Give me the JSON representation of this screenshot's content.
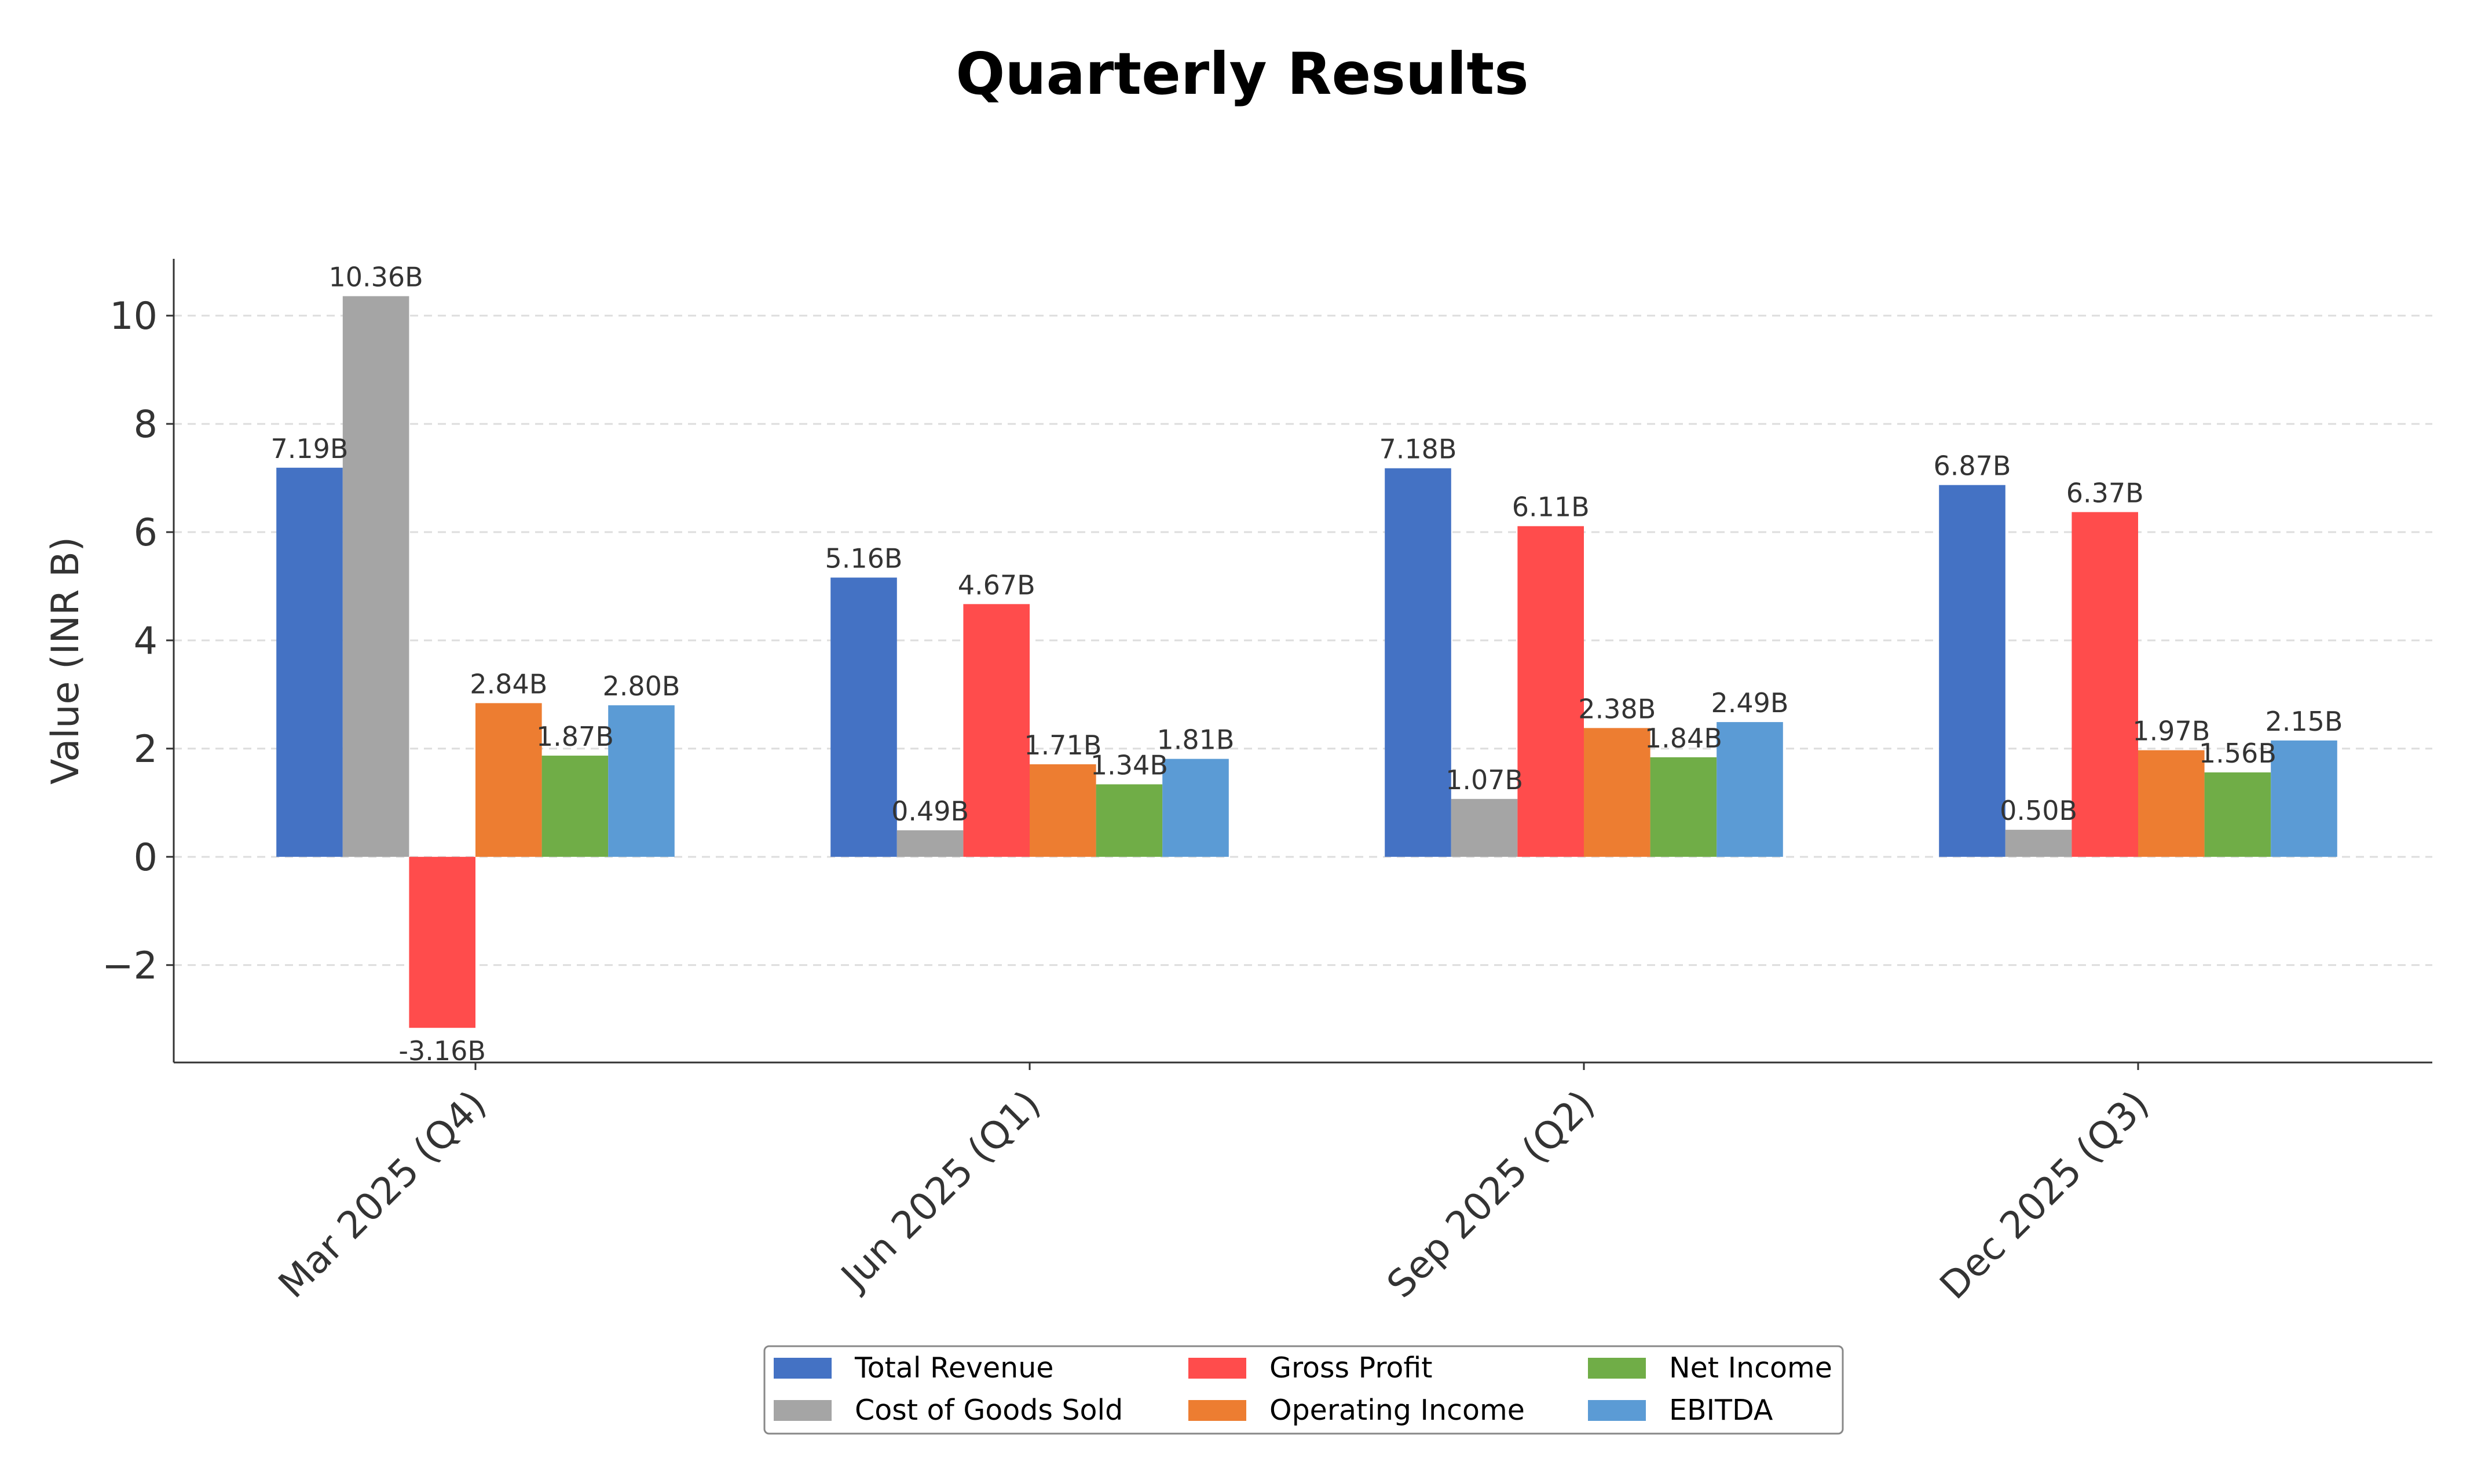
{
  "chart_data": {
    "type": "bar",
    "title": "Quarterly Results",
    "xlabel": "",
    "ylabel": "Value (INR B)",
    "categories": [
      "Mar 2025 (Q4)",
      "Jun 2025 (Q1)",
      "Sep 2025 (Q2)",
      "Dec 2025 (Q3)"
    ],
    "series": [
      {
        "name": "Total Revenue",
        "color": "#4472C4",
        "values": [
          7.19,
          5.16,
          7.18,
          6.87
        ],
        "labels": [
          "7.19B",
          "5.16B",
          "7.18B",
          "6.87B"
        ]
      },
      {
        "name": "Cost of Goods Sold",
        "color": "#A5A5A5",
        "values": [
          10.36,
          0.49,
          1.07,
          0.5
        ],
        "labels": [
          "10.36B",
          "0.49B",
          "1.07B",
          "0.50B"
        ]
      },
      {
        "name": "Gross Profit",
        "color": "#FF4C4C",
        "values": [
          -3.16,
          4.67,
          6.11,
          6.37
        ],
        "labels": [
          "-3.16B",
          "4.67B",
          "6.11B",
          "6.37B"
        ]
      },
      {
        "name": "Operating Income",
        "color": "#ED7D31",
        "values": [
          2.84,
          1.71,
          2.38,
          1.97
        ],
        "labels": [
          "2.84B",
          "1.71B",
          "2.38B",
          "1.97B"
        ]
      },
      {
        "name": "Net Income",
        "color": "#70AD47",
        "values": [
          1.87,
          1.34,
          1.84,
          1.56
        ],
        "labels": [
          "1.87B",
          "1.34B",
          "1.84B",
          "1.56B"
        ]
      },
      {
        "name": "EBITDA",
        "color": "#5B9BD5",
        "values": [
          2.8,
          1.81,
          2.49,
          2.15
        ],
        "labels": [
          "2.80B",
          "1.81B",
          "2.49B",
          "2.15B"
        ]
      }
    ],
    "ylim": [
      -3.8,
      11.05
    ],
    "yticks": [
      -2,
      0,
      2,
      4,
      6,
      8,
      10
    ],
    "ytick_labels": [
      "−2",
      "0",
      "2",
      "4",
      "6",
      "8",
      "10"
    ],
    "grid": true,
    "legend_position": "bottom-center"
  }
}
